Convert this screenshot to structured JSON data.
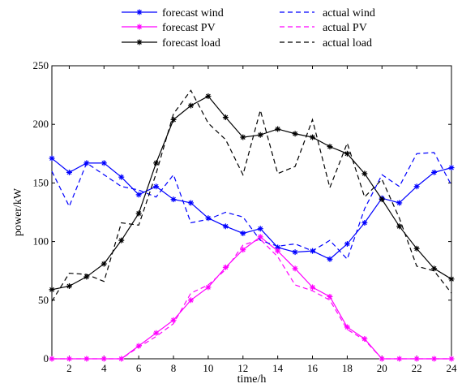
{
  "chart_data": {
    "type": "line",
    "title": "",
    "xlabel": "time/h",
    "ylabel": "power/kW",
    "xlim": [
      1,
      24
    ],
    "ylim": [
      0,
      250
    ],
    "xticks": [
      2,
      4,
      6,
      8,
      10,
      12,
      14,
      16,
      18,
      20,
      22,
      24
    ],
    "yticks": [
      0,
      50,
      100,
      150,
      200,
      250
    ],
    "grid": false,
    "legend_position": "top",
    "x": [
      1,
      2,
      3,
      4,
      5,
      6,
      7,
      8,
      9,
      10,
      11,
      12,
      13,
      14,
      15,
      16,
      17,
      18,
      19,
      20,
      21,
      22,
      23,
      24
    ],
    "series": [
      {
        "name": "forecast wind",
        "color": "#0000ff",
        "style": "solid",
        "marker": "star",
        "values": [
          171,
          159,
          167,
          167,
          155,
          140,
          147,
          136,
          133,
          120,
          113,
          107,
          111,
          95,
          91,
          92,
          85,
          98,
          116,
          137,
          133,
          147,
          159,
          163
        ]
      },
      {
        "name": "forecast PV",
        "color": "#ff00ff",
        "style": "solid",
        "marker": "star",
        "values": [
          0,
          0,
          0,
          0,
          0,
          11,
          22,
          33,
          50,
          61,
          78,
          93,
          104,
          92,
          77,
          61,
          53,
          27,
          17,
          0,
          0,
          0,
          0,
          0
        ]
      },
      {
        "name": "forecast load",
        "color": "#000000",
        "style": "solid",
        "marker": "star",
        "values": [
          59,
          62,
          70,
          81,
          101,
          124,
          167,
          204,
          216,
          224,
          206,
          189,
          191,
          196,
          192,
          189,
          181,
          175,
          158,
          136,
          113,
          94,
          77,
          68
        ]
      },
      {
        "name": "actual wind",
        "color": "#0000ff",
        "style": "dashed",
        "marker": "none",
        "values": [
          160,
          130,
          167,
          157,
          147,
          144,
          138,
          157,
          116,
          119,
          125,
          121,
          101,
          96,
          98,
          92,
          101,
          85,
          128,
          157,
          147,
          175,
          176,
          148
        ]
      },
      {
        "name": "actual PV",
        "color": "#ff00ff",
        "style": "dashed",
        "marker": "none",
        "values": [
          0,
          0,
          0,
          0,
          0,
          10,
          19,
          30,
          56,
          63,
          76,
          97,
          102,
          87,
          63,
          58,
          50,
          25,
          16,
          0,
          0,
          0,
          0,
          0
        ]
      },
      {
        "name": "actual load",
        "color": "#000000",
        "style": "dashed",
        "marker": "none",
        "values": [
          49,
          73,
          72,
          66,
          116,
          114,
          158,
          209,
          229,
          201,
          187,
          157,
          212,
          158,
          164,
          204,
          146,
          184,
          138,
          153,
          120,
          79,
          75,
          56
        ]
      }
    ]
  }
}
